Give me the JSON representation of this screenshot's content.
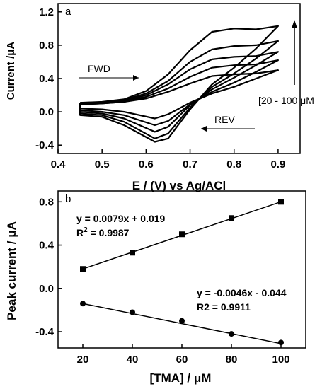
{
  "chart_data": [
    {
      "panel": "a",
      "type": "line",
      "xlabel": "E / (V) vs Ag/ACl",
      "ylabel": "Current /μA",
      "xlim": [
        0.4,
        0.95
      ],
      "ylim": [
        -0.5,
        1.3
      ],
      "x_ticks": [
        "0.4",
        "0.5",
        "0.6",
        "0.7",
        "0.8",
        "0.9"
      ],
      "y_ticks": [
        "-0.4",
        "0.0",
        "0.4",
        "0.8",
        "1.2"
      ],
      "annotations": {
        "fwd": "FWD",
        "rev": "REV",
        "range": "[20 - 100 μM"
      },
      "series": [
        {
          "forward": [
            [
              0.45,
              0.09
            ],
            [
              0.5,
              0.1
            ],
            [
              0.55,
              0.12
            ],
            [
              0.6,
              0.16
            ],
            [
              0.65,
              0.24
            ],
            [
              0.7,
              0.34
            ],
            [
              0.75,
              0.43
            ],
            [
              0.8,
              0.45
            ],
            [
              0.85,
              0.46
            ],
            [
              0.9,
              0.5
            ]
          ],
          "reverse": [
            [
              0.9,
              0.5
            ],
            [
              0.85,
              0.4
            ],
            [
              0.8,
              0.3
            ],
            [
              0.75,
              0.22
            ],
            [
              0.7,
              0.11
            ],
            [
              0.65,
              -0.03
            ],
            [
              0.62,
              -0.08
            ],
            [
              0.55,
              0.0
            ],
            [
              0.5,
              0.03
            ],
            [
              0.45,
              0.04
            ]
          ]
        },
        {
          "forward": [
            [
              0.45,
              0.09
            ],
            [
              0.5,
              0.1
            ],
            [
              0.55,
              0.12
            ],
            [
              0.6,
              0.18
            ],
            [
              0.65,
              0.28
            ],
            [
              0.7,
              0.42
            ],
            [
              0.75,
              0.53
            ],
            [
              0.8,
              0.56
            ],
            [
              0.85,
              0.57
            ],
            [
              0.9,
              0.62
            ]
          ],
          "reverse": [
            [
              0.9,
              0.62
            ],
            [
              0.85,
              0.48
            ],
            [
              0.8,
              0.35
            ],
            [
              0.75,
              0.24
            ],
            [
              0.7,
              0.09
            ],
            [
              0.65,
              -0.11
            ],
            [
              0.62,
              -0.16
            ],
            [
              0.55,
              -0.04
            ],
            [
              0.5,
              0.0
            ],
            [
              0.45,
              0.02
            ]
          ]
        },
        {
          "forward": [
            [
              0.45,
              0.1
            ],
            [
              0.5,
              0.11
            ],
            [
              0.55,
              0.13
            ],
            [
              0.6,
              0.2
            ],
            [
              0.65,
              0.33
            ],
            [
              0.7,
              0.51
            ],
            [
              0.75,
              0.63
            ],
            [
              0.8,
              0.66
            ],
            [
              0.85,
              0.67
            ],
            [
              0.9,
              0.72
            ]
          ],
          "reverse": [
            [
              0.9,
              0.72
            ],
            [
              0.85,
              0.56
            ],
            [
              0.8,
              0.41
            ],
            [
              0.75,
              0.27
            ],
            [
              0.7,
              0.08
            ],
            [
              0.65,
              -0.18
            ],
            [
              0.62,
              -0.24
            ],
            [
              0.55,
              -0.08
            ],
            [
              0.5,
              -0.02
            ],
            [
              0.45,
              0.0
            ]
          ]
        },
        {
          "forward": [
            [
              0.45,
              0.1
            ],
            [
              0.5,
              0.11
            ],
            [
              0.55,
              0.14
            ],
            [
              0.6,
              0.22
            ],
            [
              0.65,
              0.37
            ],
            [
              0.7,
              0.6
            ],
            [
              0.75,
              0.75
            ],
            [
              0.8,
              0.79
            ],
            [
              0.85,
              0.8
            ],
            [
              0.9,
              0.85
            ]
          ],
          "reverse": [
            [
              0.9,
              0.85
            ],
            [
              0.85,
              0.64
            ],
            [
              0.8,
              0.46
            ],
            [
              0.75,
              0.3
            ],
            [
              0.7,
              0.05
            ],
            [
              0.65,
              -0.26
            ],
            [
              0.62,
              -0.32
            ],
            [
              0.55,
              -0.12
            ],
            [
              0.5,
              -0.04
            ],
            [
              0.45,
              -0.02
            ]
          ]
        },
        {
          "forward": [
            [
              0.45,
              0.11
            ],
            [
              0.5,
              0.12
            ],
            [
              0.55,
              0.15
            ],
            [
              0.6,
              0.25
            ],
            [
              0.65,
              0.45
            ],
            [
              0.7,
              0.74
            ],
            [
              0.75,
              0.96
            ],
            [
              0.8,
              1.0
            ],
            [
              0.85,
              0.99
            ],
            [
              0.9,
              1.03
            ]
          ],
          "reverse": [
            [
              0.9,
              1.03
            ],
            [
              0.85,
              0.76
            ],
            [
              0.8,
              0.53
            ],
            [
              0.75,
              0.33
            ],
            [
              0.7,
              0.03
            ],
            [
              0.65,
              -0.32
            ],
            [
              0.62,
              -0.36
            ],
            [
              0.55,
              -0.16
            ],
            [
              0.5,
              -0.06
            ],
            [
              0.45,
              -0.04
            ]
          ]
        }
      ]
    },
    {
      "panel": "b",
      "type": "scatter",
      "xlabel": "[TMA] / μM",
      "ylabel": "Peak current / μA",
      "xlim": [
        10,
        110
      ],
      "ylim": [
        -0.55,
        0.9
      ],
      "x_ticks": [
        "20",
        "40",
        "60",
        "80",
        "100"
      ],
      "y_ticks": [
        "-0.4",
        "0.0",
        "0.4",
        "0.8"
      ],
      "series": [
        {
          "marker": "square",
          "x": [
            20,
            40,
            60,
            80,
            100
          ],
          "y": [
            0.18,
            0.33,
            0.5,
            0.65,
            0.8
          ],
          "fit_line": [
            [
              20,
              0.18
            ],
            [
              100,
              0.8
            ]
          ],
          "equation_label": "y = 0.0079x + 0.019",
          "r2_prefix": "R",
          "r2_sup": "2",
          "r2_value": " = 0.9987"
        },
        {
          "marker": "circle",
          "x": [
            20,
            40,
            60,
            80,
            100
          ],
          "y": [
            -0.14,
            -0.22,
            -0.3,
            -0.42,
            -0.5
          ],
          "fit_line": [
            [
              20,
              -0.14
            ],
            [
              100,
              -0.51
            ]
          ],
          "equation_label": "y = -0.0046x - 0.044",
          "r2_label": "R2 = 0.9911"
        }
      ]
    }
  ]
}
